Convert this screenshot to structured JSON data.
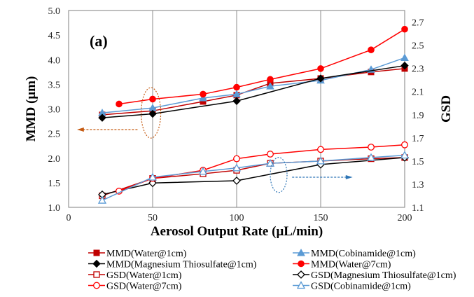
{
  "chart_data": {
    "type": "line",
    "panel_label": "(a)",
    "xlabel": "Aerosol Output Rate (μL/min)",
    "ylabel": "MMD (μm)",
    "y2label": "GSD",
    "xlim": [
      0,
      200
    ],
    "ylim": [
      1.0,
      5.0
    ],
    "y2lim": [
      1.1,
      2.8
    ],
    "xticks": [
      "0",
      "50",
      "100",
      "150",
      "200"
    ],
    "yticks": [
      "1.0",
      "1.5",
      "2.0",
      "2.5",
      "3.0",
      "3.5",
      "4.0",
      "4.5",
      "5.0"
    ],
    "y2ticks": [
      "1.1",
      "1.3",
      "1.5",
      "1.7",
      "1.9",
      "2.1",
      "2.3",
      "2.5",
      "2.7"
    ],
    "grid": "vertical",
    "series": [
      {
        "name": "MMD(Water@1cm)",
        "axis": "left",
        "color": "#c00000",
        "marker": "square-filled",
        "x": [
          20,
          50,
          80,
          100,
          120,
          150,
          180,
          200
        ],
        "y": [
          2.88,
          2.96,
          3.15,
          3.28,
          3.52,
          3.62,
          3.75,
          3.82
        ]
      },
      {
        "name": "MMD(Cobinamide@1cm)",
        "axis": "left",
        "color": "#5b9bd5",
        "marker": "triangle-filled",
        "x": [
          20,
          50,
          80,
          100,
          120,
          150,
          180,
          200
        ],
        "y": [
          2.92,
          3.02,
          3.22,
          3.3,
          3.46,
          3.58,
          3.8,
          4.04
        ]
      },
      {
        "name": "MMD(Magnesium Thiosulfate@1cm)",
        "axis": "left",
        "color": "#000000",
        "marker": "diamond-filled",
        "x": [
          20,
          50,
          100,
          150,
          200
        ],
        "y": [
          2.82,
          2.9,
          3.16,
          3.62,
          3.88
        ]
      },
      {
        "name": "MMD(Water@7cm)",
        "axis": "left",
        "color": "#ff0000",
        "marker": "circle-filled",
        "x": [
          30,
          50,
          80,
          100,
          120,
          150,
          180,
          200
        ],
        "y": [
          3.1,
          3.2,
          3.3,
          3.44,
          3.6,
          3.82,
          4.2,
          4.62
        ]
      },
      {
        "name": "GSD(Water@1cm)",
        "axis": "right",
        "color": "#c00000",
        "marker": "square-open",
        "x": [
          20,
          50,
          80,
          100,
          120,
          150,
          180,
          200
        ],
        "y": [
          1.2,
          1.35,
          1.39,
          1.42,
          1.48,
          1.5,
          1.52,
          1.53
        ]
      },
      {
        "name": "GSD(Magnesium Thiosulfate@1cm)",
        "axis": "right",
        "color": "#000000",
        "marker": "diamond-open",
        "x": [
          20,
          50,
          100,
          150,
          200
        ],
        "y": [
          1.21,
          1.31,
          1.33,
          1.47,
          1.53
        ]
      },
      {
        "name": "GSD(Water@7cm)",
        "axis": "right",
        "color": "#ff0000",
        "marker": "circle-open",
        "x": [
          30,
          50,
          80,
          100,
          120,
          150,
          180,
          200
        ],
        "y": [
          1.24,
          1.35,
          1.42,
          1.52,
          1.56,
          1.6,
          1.62,
          1.64
        ]
      },
      {
        "name": "GSD(Cobinamide@1cm)",
        "axis": "right",
        "color": "#5b9bd5",
        "marker": "triangle-open",
        "x": [
          20,
          50,
          80,
          100,
          120,
          150,
          180,
          200
        ],
        "y": [
          1.16,
          1.36,
          1.41,
          1.44,
          1.48,
          1.5,
          1.53,
          1.55
        ]
      }
    ],
    "annotations": [
      {
        "type": "ellipse-arrow",
        "points_to": "left-axis",
        "color": "#c55a11"
      },
      {
        "type": "ellipse-arrow",
        "points_to": "right-axis",
        "color": "#2e75b6"
      }
    ],
    "legend": {
      "placement": "bottom",
      "columns": 2
    }
  }
}
